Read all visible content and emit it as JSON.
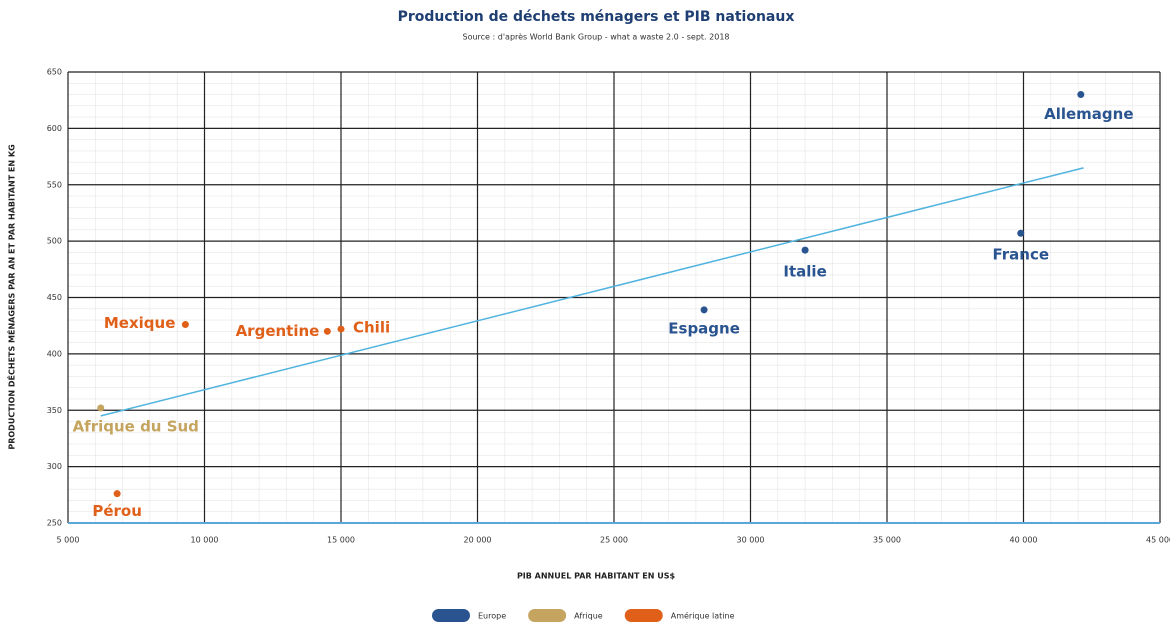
{
  "chart_data": {
    "type": "scatter",
    "title": "Production de déchets ménagers et PIB nationaux",
    "subtitle": "Source : d'après World Bank Group - what a waste 2.0 - sept. 2018",
    "xlabel": "PIB ANNUEL PAR HABITANT EN US$",
    "ylabel": "PRODUCTION DÉCHETS MÉNAGERS PAR AN ET PAR HABITANT EN KG",
    "xlim": [
      5000,
      45000
    ],
    "xticks": [
      {
        "value": 5000,
        "label": "5 000"
      },
      {
        "value": 10000,
        "label": "10 000"
      },
      {
        "value": 15000,
        "label": "15 000"
      },
      {
        "value": 20000,
        "label": "20 000"
      },
      {
        "value": 25000,
        "label": "25 000"
      },
      {
        "value": 30000,
        "label": "30 000"
      },
      {
        "value": 35000,
        "label": "35 000"
      },
      {
        "value": 40000,
        "label": "40 000"
      },
      {
        "value": 45000,
        "label": "45 000"
      }
    ],
    "ylim": [
      250,
      650
    ],
    "yticks": [
      250,
      300,
      350,
      400,
      450,
      500,
      550,
      600,
      650
    ],
    "grid": true,
    "minor_grid": true,
    "legend": "bottom",
    "series": [
      {
        "name": "Europe",
        "color": "#2a5490",
        "x": [
          42100,
          39900,
          32000,
          28300
        ],
        "values": [
          630,
          507,
          492,
          439
        ],
        "labels": [
          "Allemagne",
          "France",
          "Italie",
          "Espagne"
        ]
      },
      {
        "name": "Afrique",
        "color": "#c4a45e",
        "x": [
          6200
        ],
        "values": [
          352
        ],
        "labels": [
          "Afrique du Sud"
        ]
      },
      {
        "name": "Amérique latine",
        "color": "#e0601a",
        "x": [
          9300,
          14500,
          15000,
          6800
        ],
        "values": [
          426,
          420,
          422,
          276
        ],
        "labels": [
          "Mexique",
          "Argentine",
          "Chili",
          "Pérou"
        ]
      }
    ],
    "trendline": {
      "color": "#4fb3e0",
      "x": [
        6200,
        42200
      ],
      "values": [
        345,
        565
      ]
    }
  }
}
